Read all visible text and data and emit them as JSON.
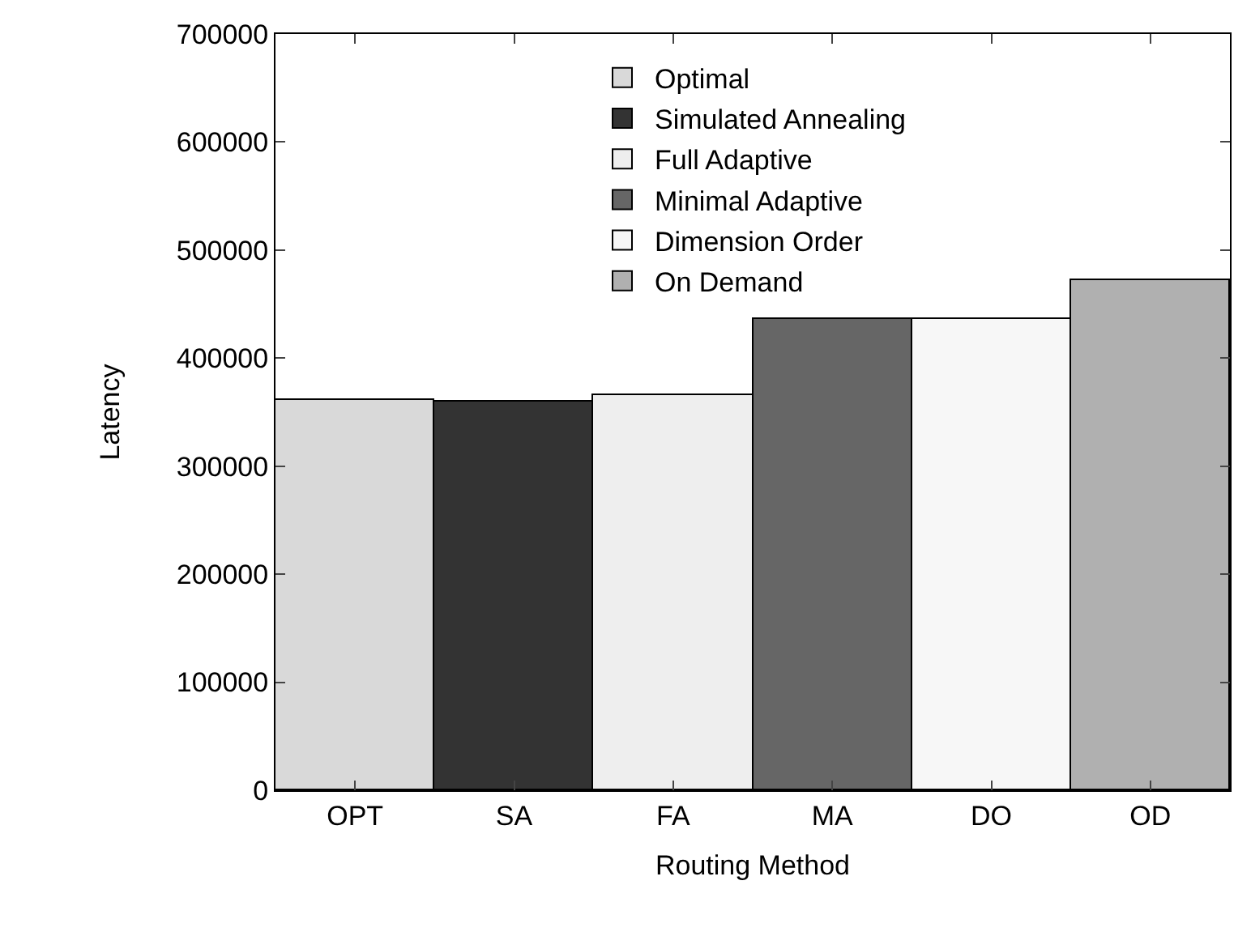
{
  "chart_data": {
    "type": "bar",
    "xlabel": "Routing Method",
    "ylabel": "Latency",
    "categories": [
      "OPT",
      "SA",
      "FA",
      "MA",
      "DO",
      "OD"
    ],
    "series": [
      {
        "name": "Optimal",
        "color": "#d9d9d9",
        "values": [
          361000,
          null,
          null,
          null,
          null,
          null
        ]
      },
      {
        "name": "Simulated Annealing",
        "color": "#333333",
        "values": [
          null,
          360000,
          null,
          null,
          null,
          null
        ]
      },
      {
        "name": "Full Adaptive",
        "color": "#eeeeee",
        "values": [
          null,
          null,
          365000,
          null,
          null,
          null
        ]
      },
      {
        "name": "Minimal Adaptive",
        "color": "#666666",
        "values": [
          null,
          null,
          null,
          436000,
          null,
          null
        ]
      },
      {
        "name": "Dimension Order",
        "color": "#f7f7f7",
        "values": [
          null,
          null,
          null,
          null,
          436000,
          null
        ]
      },
      {
        "name": "On Demand",
        "color": "#b0b0b0",
        "values": [
          null,
          null,
          null,
          null,
          null,
          472000
        ]
      }
    ],
    "ylim": [
      0,
      700000
    ],
    "yticks": [
      0,
      100000,
      200000,
      300000,
      400000,
      500000,
      600000,
      700000
    ],
    "legend": "top"
  }
}
